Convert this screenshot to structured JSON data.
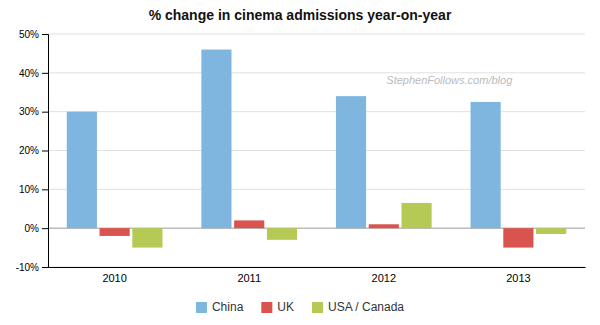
{
  "chart_data": {
    "type": "bar",
    "title": "% change in cinema admissions year-on-year",
    "annotations": [
      "StephenFollows.com/blog"
    ],
    "categories": [
      "2010",
      "2011",
      "2012",
      "2013"
    ],
    "series": [
      {
        "name": "China",
        "color": "#7eb6e0",
        "values": [
          30.0,
          46.0,
          34.0,
          32.5
        ]
      },
      {
        "name": "UK",
        "color": "#d9534f",
        "values": [
          -2.0,
          2.0,
          1.0,
          -5.0
        ]
      },
      {
        "name": "USA / Canada",
        "color": "#b5c955",
        "values": [
          -5.0,
          -3.0,
          6.5,
          -1.5
        ]
      }
    ],
    "ylim": [
      -10,
      50
    ],
    "yticks": [
      {
        "value": -10,
        "label": "-10%"
      },
      {
        "value": 0,
        "label": "0%"
      },
      {
        "value": 10,
        "label": "10%"
      },
      {
        "value": 20,
        "label": "20%"
      },
      {
        "value": 30,
        "label": "30%"
      },
      {
        "value": 40,
        "label": "40%"
      },
      {
        "value": 50,
        "label": "50%"
      }
    ],
    "grid": true,
    "legend": "bottom"
  }
}
